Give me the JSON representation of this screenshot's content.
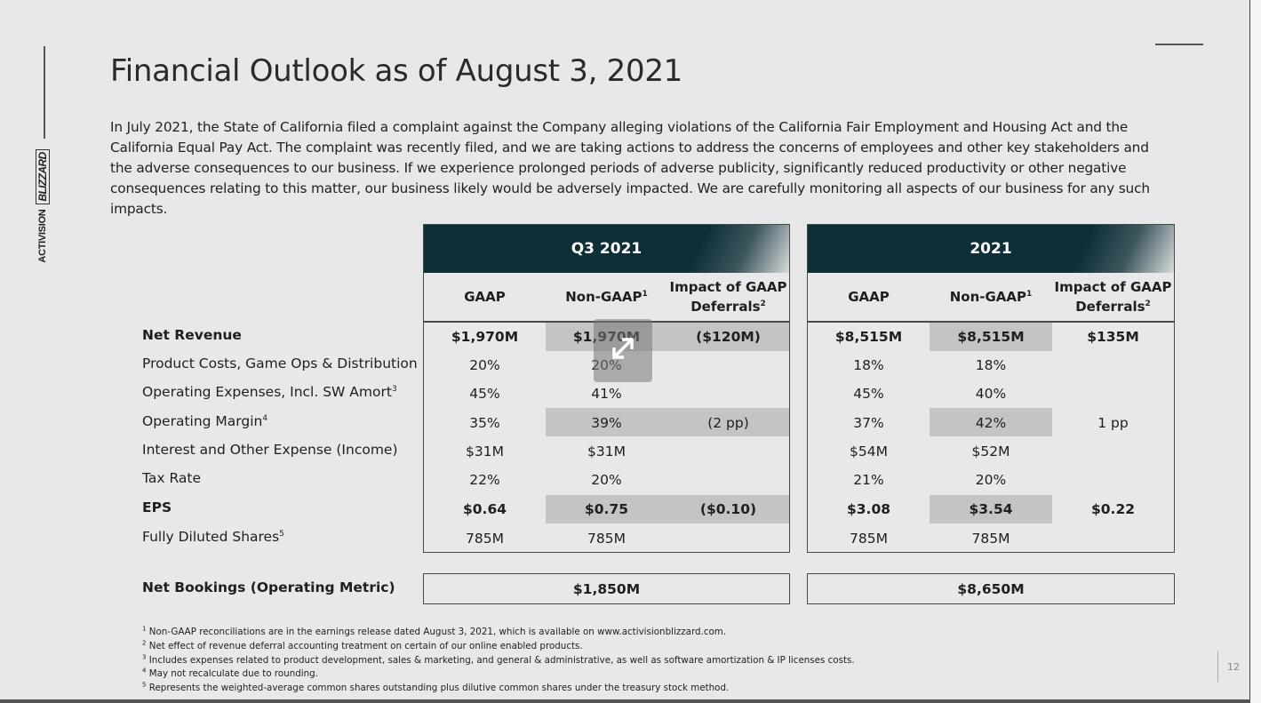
{
  "title": "Financial Outlook as of August 3, 2021",
  "intro": "In July 2021, the State of California filed a complaint against the Company alleging violations of the California Fair Employment and Housing Act and the California Equal Pay Act. The complaint was recently filed, and we are taking actions to address the concerns of employees and other key stakeholders and the adverse consequences to our business. If we experience prolonged periods of adverse publicity, significantly reduced productivity or other negative consequences relating to this matter, our business likely would be adversely impacted. We are carefully monitoring all aspects of our business for any such impacts.",
  "logo": {
    "activision": "ACTIVISION",
    "blizzard": "BLIZZARD"
  },
  "periods": [
    {
      "header": "Q3 2021",
      "gaap": "GAAP",
      "nongaap": "Non-GAAP",
      "nongaap_sup": "1",
      "impact_line1": "Impact of GAAP",
      "impact_line2": "Deferrals",
      "impact_sup": "2"
    },
    {
      "header": "2021",
      "gaap": "GAAP",
      "nongaap": "Non-GAAP",
      "nongaap_sup": "1",
      "impact_line1": "Impact of GAAP",
      "impact_line2": "Deferrals",
      "impact_sup": "2"
    }
  ],
  "rows": [
    {
      "label": "Net Revenue",
      "sup": "",
      "q3": [
        "$1,970M",
        "$1,970M",
        "($120M)"
      ],
      "fy": [
        "$8,515M",
        "$8,515M",
        "$135M"
      ]
    },
    {
      "label": "Product Costs, Game Ops & Distribution",
      "sup": "",
      "q3": [
        "20%",
        "20%",
        ""
      ],
      "fy": [
        "18%",
        "18%",
        ""
      ]
    },
    {
      "label": "Operating Expenses, Incl. SW Amort",
      "sup": "3",
      "q3": [
        "45%",
        "41%",
        ""
      ],
      "fy": [
        "45%",
        "40%",
        ""
      ]
    },
    {
      "label": "Operating Margin",
      "sup": "4",
      "q3": [
        "35%",
        "39%",
        "(2 pp)"
      ],
      "fy": [
        "37%",
        "42%",
        "1 pp"
      ]
    },
    {
      "label": "Interest and Other Expense (Income)",
      "sup": "",
      "q3": [
        "$31M",
        "$31M",
        ""
      ],
      "fy": [
        "$54M",
        "$52M",
        ""
      ]
    },
    {
      "label": "Tax Rate",
      "sup": "",
      "q3": [
        "22%",
        "20%",
        ""
      ],
      "fy": [
        "21%",
        "20%",
        ""
      ]
    },
    {
      "label": "EPS",
      "sup": "",
      "q3": [
        "$0.64",
        "$0.75",
        "($0.10)"
      ],
      "fy": [
        "$3.08",
        "$3.54",
        "$0.22"
      ]
    },
    {
      "label": "Fully Diluted Shares",
      "sup": "5",
      "q3": [
        "785M",
        "785M",
        ""
      ],
      "fy": [
        "785M",
        "785M",
        ""
      ]
    }
  ],
  "net_bookings": {
    "label": "Net Bookings (Operating Metric)",
    "q3": "$1,850M",
    "fy": "$8,650M"
  },
  "footnotes": [
    {
      "n": "1",
      "text": "Non-GAAP reconciliations are in the earnings release dated August 3, 2021, which is available on www.activisionblizzard.com."
    },
    {
      "n": "2",
      "text": "Net effect of revenue deferral accounting treatment on certain of our online enabled products."
    },
    {
      "n": "3",
      "text": "Includes expenses related to product development, sales & marketing, and general & administrative, as well as software amortization & IP licenses costs."
    },
    {
      "n": "4",
      "text": "May not recalculate due to rounding."
    },
    {
      "n": "5",
      "text": "Represents the weighted-average common shares outstanding plus dilutive common shares under the treasury stock method."
    }
  ],
  "page_number": "12"
}
